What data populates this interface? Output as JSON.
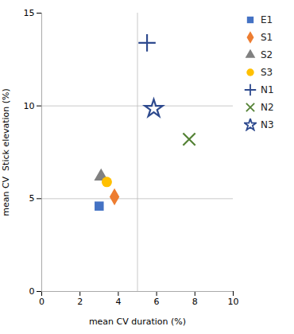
{
  "chart_data": {
    "type": "scatter",
    "xlabel": "mean CV duration (%)",
    "ylabel": "mean CV  Stick elevation (%)",
    "series": [
      {
        "name": "E1",
        "color": "#4472C4",
        "marker": "square",
        "x": [
          3.0
        ],
        "values": [
          4.6
        ]
      },
      {
        "name": "S1",
        "color": "#ED7D31",
        "marker": "diamond",
        "x": [
          3.8
        ],
        "values": [
          5.1
        ]
      },
      {
        "name": "S2",
        "color": "#808080",
        "marker": "triangle",
        "x": [
          3.1
        ],
        "values": [
          6.2
        ]
      },
      {
        "name": "S3",
        "color": "#FFC000",
        "marker": "circle",
        "x": [
          3.4
        ],
        "values": [
          5.9
        ]
      },
      {
        "name": "N1",
        "color": "#2E4A8E",
        "marker": "plus",
        "x": [
          5.5
        ],
        "values": [
          13.4
        ]
      },
      {
        "name": "N2",
        "color": "#548235",
        "marker": "times",
        "x": [
          7.7
        ],
        "values": [
          8.2
        ]
      },
      {
        "name": "N3",
        "color": "#2E4A8E",
        "marker": "star",
        "x": [
          5.85
        ],
        "values": [
          9.85
        ]
      }
    ],
    "xlim": [
      0,
      10
    ],
    "ylim": [
      0,
      15
    ],
    "xticks": [
      0,
      2,
      4,
      6,
      8,
      10
    ],
    "yticks": [
      0,
      5,
      10,
      15
    ],
    "grid": {
      "x": [
        5
      ],
      "y": [
        5,
        10
      ]
    },
    "legend": "right"
  }
}
